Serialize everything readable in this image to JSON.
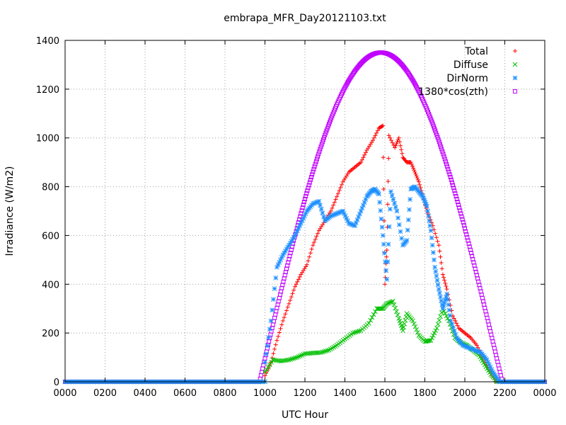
{
  "chart_data": {
    "type": "scatter",
    "title": "embrapa_MFR_Day20121103.txt",
    "xlabel": "UTC Hour",
    "ylabel": "Irradiance (W/m2)",
    "xlim": [
      0,
      24
    ],
    "ylim": [
      0,
      1400
    ],
    "x_tick_labels": [
      "0000",
      "0200",
      "0400",
      "0600",
      "0800",
      "1000",
      "1200",
      "1400",
      "1600",
      "1800",
      "2000",
      "2200",
      "0000"
    ],
    "y_tick_labels": [
      "0",
      "200",
      "400",
      "600",
      "800",
      "1000",
      "1200",
      "1400"
    ],
    "grid": true,
    "legend_position": "top-right",
    "series": [
      {
        "name": "Total",
        "color": "#ff0000",
        "marker": "plus",
        "points": [
          [
            10.0,
            25
          ],
          [
            10.3,
            80
          ],
          [
            10.6,
            170
          ],
          [
            10.9,
            250
          ],
          [
            11.2,
            320
          ],
          [
            11.5,
            390
          ],
          [
            11.8,
            440
          ],
          [
            12.1,
            480
          ],
          [
            12.4,
            560
          ],
          [
            12.7,
            620
          ],
          [
            13.0,
            660
          ],
          [
            13.3,
            700
          ],
          [
            13.6,
            760
          ],
          [
            13.9,
            820
          ],
          [
            14.2,
            860
          ],
          [
            14.5,
            880
          ],
          [
            14.8,
            900
          ],
          [
            15.1,
            950
          ],
          [
            15.4,
            990
          ],
          [
            15.7,
            1040
          ],
          [
            15.9,
            1050
          ],
          [
            16.0,
            400
          ],
          [
            16.1,
            540
          ],
          [
            16.2,
            1010
          ],
          [
            16.5,
            960
          ],
          [
            16.7,
            1000
          ],
          [
            16.9,
            920
          ],
          [
            17.1,
            900
          ],
          [
            17.3,
            900
          ],
          [
            17.5,
            860
          ],
          [
            17.7,
            820
          ],
          [
            17.9,
            760
          ],
          [
            18.1,
            700
          ],
          [
            18.4,
            640
          ],
          [
            18.7,
            560
          ],
          [
            18.9,
            440
          ],
          [
            19.1,
            380
          ],
          [
            19.4,
            270
          ],
          [
            19.7,
            220
          ],
          [
            20.0,
            200
          ],
          [
            20.3,
            180
          ],
          [
            20.6,
            150
          ],
          [
            20.9,
            100
          ],
          [
            21.2,
            50
          ],
          [
            21.5,
            10
          ]
        ]
      },
      {
        "name": "Diffuse",
        "color": "#00c000",
        "marker": "cross",
        "points": [
          [
            10.0,
            40
          ],
          [
            10.4,
            90
          ],
          [
            10.8,
            85
          ],
          [
            11.2,
            90
          ],
          [
            11.6,
            100
          ],
          [
            12.0,
            115
          ],
          [
            12.4,
            118
          ],
          [
            12.8,
            120
          ],
          [
            13.2,
            130
          ],
          [
            13.6,
            150
          ],
          [
            14.0,
            175
          ],
          [
            14.4,
            200
          ],
          [
            14.8,
            210
          ],
          [
            15.2,
            240
          ],
          [
            15.6,
            300
          ],
          [
            15.9,
            300
          ],
          [
            16.1,
            320
          ],
          [
            16.4,
            330
          ],
          [
            16.7,
            260
          ],
          [
            16.9,
            210
          ],
          [
            17.1,
            280
          ],
          [
            17.4,
            250
          ],
          [
            17.7,
            190
          ],
          [
            18.0,
            165
          ],
          [
            18.3,
            170
          ],
          [
            18.6,
            220
          ],
          [
            18.9,
            300
          ],
          [
            19.2,
            250
          ],
          [
            19.5,
            180
          ],
          [
            19.8,
            160
          ],
          [
            20.1,
            150
          ],
          [
            20.4,
            130
          ],
          [
            20.7,
            110
          ],
          [
            21.0,
            70
          ],
          [
            21.3,
            30
          ],
          [
            21.6,
            5
          ]
        ]
      },
      {
        "name": "DirNorm",
        "color": "#1e90ff",
        "marker": "star",
        "points": [
          [
            10.0,
            80
          ],
          [
            10.3,
            250
          ],
          [
            10.6,
            470
          ],
          [
            10.9,
            520
          ],
          [
            11.2,
            560
          ],
          [
            11.5,
            600
          ],
          [
            11.8,
            650
          ],
          [
            12.1,
            700
          ],
          [
            12.4,
            730
          ],
          [
            12.7,
            740
          ],
          [
            13.0,
            660
          ],
          [
            13.3,
            680
          ],
          [
            13.6,
            690
          ],
          [
            13.9,
            700
          ],
          [
            14.2,
            650
          ],
          [
            14.5,
            640
          ],
          [
            14.8,
            700
          ],
          [
            15.1,
            760
          ],
          [
            15.3,
            780
          ],
          [
            15.5,
            790
          ],
          [
            15.7,
            770
          ],
          [
            15.9,
            600
          ],
          [
            16.1,
            420
          ],
          [
            16.3,
            780
          ],
          [
            16.6,
            700
          ],
          [
            16.9,
            560
          ],
          [
            17.1,
            580
          ],
          [
            17.3,
            790
          ],
          [
            17.5,
            800
          ],
          [
            17.7,
            780
          ],
          [
            17.9,
            760
          ],
          [
            18.1,
            720
          ],
          [
            18.3,
            620
          ],
          [
            18.5,
            470
          ],
          [
            18.7,
            380
          ],
          [
            18.9,
            300
          ],
          [
            19.1,
            360
          ],
          [
            19.3,
            250
          ],
          [
            19.6,
            180
          ],
          [
            19.9,
            150
          ],
          [
            20.2,
            140
          ],
          [
            20.5,
            130
          ],
          [
            20.8,
            120
          ],
          [
            21.1,
            90
          ],
          [
            21.4,
            40
          ],
          [
            21.7,
            5
          ]
        ]
      },
      {
        "name": "1380*cos(zth)",
        "color": "#c000ff",
        "marker": "square",
        "peak_x": 15.8,
        "peak_y": 1350,
        "zero_start": 9.65,
        "zero_end": 21.8
      }
    ]
  }
}
